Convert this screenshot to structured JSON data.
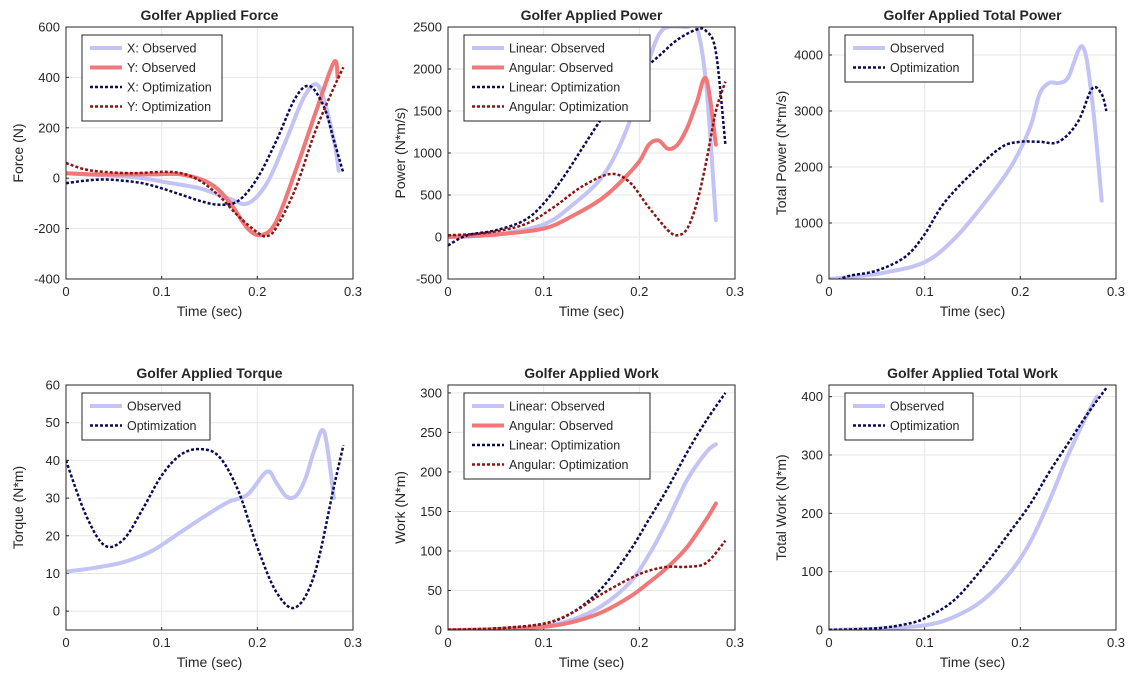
{
  "figure": {
    "background": "#ffffff"
  },
  "styles": {
    "X: Observed": {
      "color": "#c3c3f5",
      "dash": "",
      "width": 4
    },
    "Y: Observed": {
      "color": "#f07878",
      "dash": "",
      "width": 4
    },
    "X: Optimization": {
      "color": "#0a0a55",
      "dash": "3,2",
      "width": 2.5
    },
    "Y: Optimization": {
      "color": "#8c1414",
      "dash": "3,2",
      "width": 2.5
    },
    "Linear: Observed": {
      "color": "#c3c3f5",
      "dash": "",
      "width": 4
    },
    "Angular: Observed": {
      "color": "#f07878",
      "dash": "",
      "width": 4
    },
    "Linear: Optimization": {
      "color": "#0a0a55",
      "dash": "3,2",
      "width": 2.5
    },
    "Angular: Optimization": {
      "color": "#8c1414",
      "dash": "3,2",
      "width": 2.5
    },
    "Observed": {
      "color": "#c3c3f5",
      "dash": "",
      "width": 4
    },
    "Optimization": {
      "color": "#0a0a55",
      "dash": "3,2",
      "width": 2.5
    }
  },
  "chart_data": [
    {
      "type": "line",
      "title": "Golfer Applied Force",
      "xlabel": "Time (sec)",
      "ylabel": "Force (N)",
      "xlim": [
        0,
        0.3
      ],
      "ylim": [
        -400,
        600
      ],
      "xticks": [
        "0",
        "0.1",
        "0.2",
        "0.3"
      ],
      "yticks": [
        "-400",
        "-200",
        "0",
        "200",
        "400",
        "600"
      ],
      "grid": true,
      "legend_position": "top-left",
      "series": [
        {
          "name": "X: Observed",
          "x": [
            0,
            0.02,
            0.05,
            0.08,
            0.11,
            0.14,
            0.17,
            0.19,
            0.21,
            0.23,
            0.25,
            0.265,
            0.28,
            0.285
          ],
          "y": [
            20,
            15,
            10,
            0,
            -20,
            -40,
            -80,
            -100,
            -20,
            150,
            330,
            360,
            150,
            30
          ]
        },
        {
          "name": "Y: Observed",
          "x": [
            0,
            0.03,
            0.06,
            0.09,
            0.12,
            0.15,
            0.17,
            0.19,
            0.205,
            0.22,
            0.24,
            0.26,
            0.28,
            0.284
          ],
          "y": [
            20,
            15,
            15,
            15,
            15,
            -20,
            -90,
            -200,
            -225,
            -170,
            30,
            250,
            460,
            400
          ]
        },
        {
          "name": "X: Optimization",
          "x": [
            0,
            0.02,
            0.04,
            0.06,
            0.08,
            0.1,
            0.12,
            0.14,
            0.16,
            0.18,
            0.2,
            0.22,
            0.24,
            0.255,
            0.27,
            0.28,
            0.29
          ],
          "y": [
            -20,
            -10,
            -5,
            -10,
            -20,
            -40,
            -65,
            -90,
            -105,
            -90,
            0,
            150,
            320,
            365,
            280,
            150,
            20
          ]
        },
        {
          "name": "Y: Optimization",
          "x": [
            0,
            0.02,
            0.04,
            0.07,
            0.1,
            0.12,
            0.14,
            0.16,
            0.18,
            0.2,
            0.21,
            0.22,
            0.24,
            0.26,
            0.28,
            0.29
          ],
          "y": [
            60,
            35,
            25,
            20,
            25,
            20,
            -10,
            -70,
            -150,
            -215,
            -230,
            -195,
            -40,
            180,
            360,
            440
          ]
        }
      ]
    },
    {
      "type": "line",
      "title": "Golfer Applied Power",
      "xlabel": "Time (sec)",
      "ylabel": "Power (N*m/s)",
      "xlim": [
        0,
        0.3
      ],
      "ylim": [
        -500,
        2500
      ],
      "xticks": [
        "0",
        "0.1",
        "0.2",
        "0.3"
      ],
      "yticks": [
        "-500",
        "0",
        "500",
        "1000",
        "1500",
        "2000",
        "2500"
      ],
      "grid": true,
      "legend_position": "top-left",
      "series": [
        {
          "name": "Linear: Observed",
          "x": [
            0,
            0.05,
            0.1,
            0.13,
            0.16,
            0.18,
            0.2,
            0.21,
            0.22,
            0.23,
            0.25,
            0.26,
            0.27,
            0.28
          ],
          "y": [
            0,
            30,
            150,
            380,
            700,
            1100,
            1700,
            2100,
            2400,
            2500,
            2500,
            2500,
            1800,
            200
          ]
        },
        {
          "name": "Angular: Observed",
          "x": [
            0,
            0.05,
            0.1,
            0.13,
            0.16,
            0.18,
            0.2,
            0.21,
            0.22,
            0.23,
            0.24,
            0.25,
            0.26,
            0.27,
            0.28
          ],
          "y": [
            0,
            30,
            100,
            250,
            450,
            650,
            900,
            1100,
            1150,
            1050,
            1100,
            1300,
            1600,
            1880,
            1100
          ]
        },
        {
          "name": "Linear: Optimization",
          "x": [
            0,
            0.02,
            0.05,
            0.08,
            0.1,
            0.12,
            0.14,
            0.16,
            0.18,
            0.2,
            0.22,
            0.24,
            0.26,
            0.27,
            0.28,
            0.29
          ],
          "y": [
            -100,
            20,
            80,
            200,
            400,
            700,
            1050,
            1400,
            1700,
            1950,
            2150,
            2350,
            2470,
            2450,
            2200,
            1100
          ]
        },
        {
          "name": "Angular: Optimization",
          "x": [
            0,
            0.04,
            0.08,
            0.11,
            0.14,
            0.17,
            0.19,
            0.21,
            0.23,
            0.24,
            0.25,
            0.26,
            0.27,
            0.28,
            0.29
          ],
          "y": [
            20,
            50,
            150,
            350,
            600,
            750,
            650,
            350,
            80,
            20,
            100,
            400,
            900,
            1500,
            1850
          ]
        }
      ]
    },
    {
      "type": "line",
      "title": "Golfer Applied Total Power",
      "xlabel": "Time (sec)",
      "ylabel": "Total Power (N*m/s)",
      "xlim": [
        0,
        0.3
      ],
      "ylim": [
        0,
        4500
      ],
      "xticks": [
        "0",
        "0.1",
        "0.2",
        "0.3"
      ],
      "yticks": [
        "0",
        "1000",
        "2000",
        "3000",
        "4000"
      ],
      "grid": true,
      "legend_position": "top-left",
      "series": [
        {
          "name": "Observed",
          "x": [
            0,
            0.03,
            0.06,
            0.1,
            0.13,
            0.16,
            0.19,
            0.21,
            0.22,
            0.23,
            0.24,
            0.25,
            0.265,
            0.275,
            0.285
          ],
          "y": [
            0,
            50,
            120,
            300,
            700,
            1300,
            2000,
            2700,
            3300,
            3500,
            3500,
            3600,
            4150,
            3200,
            1400
          ]
        },
        {
          "name": "Optimization",
          "x": [
            0,
            0.02,
            0.05,
            0.08,
            0.1,
            0.12,
            0.15,
            0.18,
            0.2,
            0.22,
            0.24,
            0.26,
            0.275,
            0.285,
            0.29
          ],
          "y": [
            -100,
            50,
            150,
            400,
            800,
            1350,
            1900,
            2350,
            2450,
            2450,
            2450,
            2800,
            3400,
            3300,
            3000
          ]
        }
      ]
    },
    {
      "type": "line",
      "title": "Golfer Applied Torque",
      "xlabel": "Time (sec)",
      "ylabel": "Torque (N*m)",
      "xlim": [
        0,
        0.3
      ],
      "ylim": [
        -5,
        60
      ],
      "xticks": [
        "0",
        "0.1",
        "0.2",
        "0.3"
      ],
      "yticks": [
        "0",
        "10",
        "20",
        "30",
        "40",
        "50",
        "60"
      ],
      "grid": true,
      "legend_position": "top-left",
      "series": [
        {
          "name": "Observed",
          "x": [
            0,
            0.03,
            0.06,
            0.09,
            0.12,
            0.15,
            0.17,
            0.19,
            0.21,
            0.22,
            0.23,
            0.24,
            0.25,
            0.26,
            0.27,
            0.28
          ],
          "y": [
            10.5,
            11.5,
            13,
            16,
            21,
            26,
            29,
            31,
            37,
            34,
            30.5,
            30.5,
            35,
            43,
            47.5,
            30
          ]
        },
        {
          "name": "Optimization",
          "x": [
            0,
            0.02,
            0.04,
            0.06,
            0.08,
            0.1,
            0.12,
            0.14,
            0.16,
            0.18,
            0.2,
            0.22,
            0.24,
            0.26,
            0.28,
            0.29
          ],
          "y": [
            40,
            26,
            17.5,
            19,
            27,
            36,
            41.5,
            43,
            41,
            32,
            17,
            5,
            1,
            10,
            33,
            44
          ]
        }
      ]
    },
    {
      "type": "line",
      "title": "Golfer Applied Work",
      "xlabel": "Time (sec)",
      "ylabel": "Work (N*m)",
      "xlim": [
        0,
        0.3
      ],
      "ylim": [
        0,
        310
      ],
      "xticks": [
        "0",
        "0.1",
        "0.2",
        "0.3"
      ],
      "yticks": [
        "0",
        "50",
        "100",
        "150",
        "200",
        "250",
        "300"
      ],
      "grid": true,
      "legend_position": "top-left",
      "series": [
        {
          "name": "Linear: Observed",
          "x": [
            0,
            0.05,
            0.1,
            0.13,
            0.16,
            0.19,
            0.21,
            0.23,
            0.25,
            0.27,
            0.28
          ],
          "y": [
            0,
            1,
            5,
            13,
            30,
            60,
            95,
            140,
            190,
            225,
            235
          ]
        },
        {
          "name": "Angular: Observed",
          "x": [
            0,
            0.05,
            0.1,
            0.13,
            0.16,
            0.19,
            0.21,
            0.23,
            0.25,
            0.27,
            0.28
          ],
          "y": [
            0,
            1,
            4,
            10,
            22,
            42,
            60,
            80,
            105,
            140,
            160
          ]
        },
        {
          "name": "Linear: Optimization",
          "x": [
            0,
            0.05,
            0.1,
            0.13,
            0.16,
            0.19,
            0.21,
            0.23,
            0.25,
            0.27,
            0.29
          ],
          "y": [
            0,
            2,
            8,
            22,
            52,
            100,
            140,
            180,
            225,
            265,
            300
          ]
        },
        {
          "name": "Angular: Optimization",
          "x": [
            0,
            0.05,
            0.1,
            0.13,
            0.16,
            0.19,
            0.21,
            0.23,
            0.25,
            0.27,
            0.29
          ],
          "y": [
            0,
            2,
            8,
            22,
            45,
            65,
            75,
            80,
            80,
            85,
            113
          ]
        }
      ]
    },
    {
      "type": "line",
      "title": "Golfer Applied Total Work",
      "xlabel": "Time (sec)",
      "ylabel": "Total Work (N*m)",
      "xlim": [
        0,
        0.3
      ],
      "ylim": [
        0,
        420
      ],
      "xticks": [
        "0",
        "0.1",
        "0.2",
        "0.3"
      ],
      "yticks": [
        "0",
        "100",
        "200",
        "300",
        "400"
      ],
      "grid": true,
      "legend_position": "top-left",
      "series": [
        {
          "name": "Observed",
          "x": [
            0,
            0.05,
            0.1,
            0.13,
            0.16,
            0.19,
            0.21,
            0.23,
            0.25,
            0.27,
            0.28
          ],
          "y": [
            0,
            2,
            8,
            22,
            50,
            100,
            150,
            220,
            300,
            370,
            400
          ]
        },
        {
          "name": "Optimization",
          "x": [
            0,
            0.05,
            0.08,
            0.1,
            0.13,
            0.16,
            0.19,
            0.21,
            0.23,
            0.25,
            0.27,
            0.29
          ],
          "y": [
            0,
            3,
            10,
            20,
            50,
            105,
            170,
            215,
            270,
            320,
            370,
            415
          ]
        }
      ]
    }
  ]
}
